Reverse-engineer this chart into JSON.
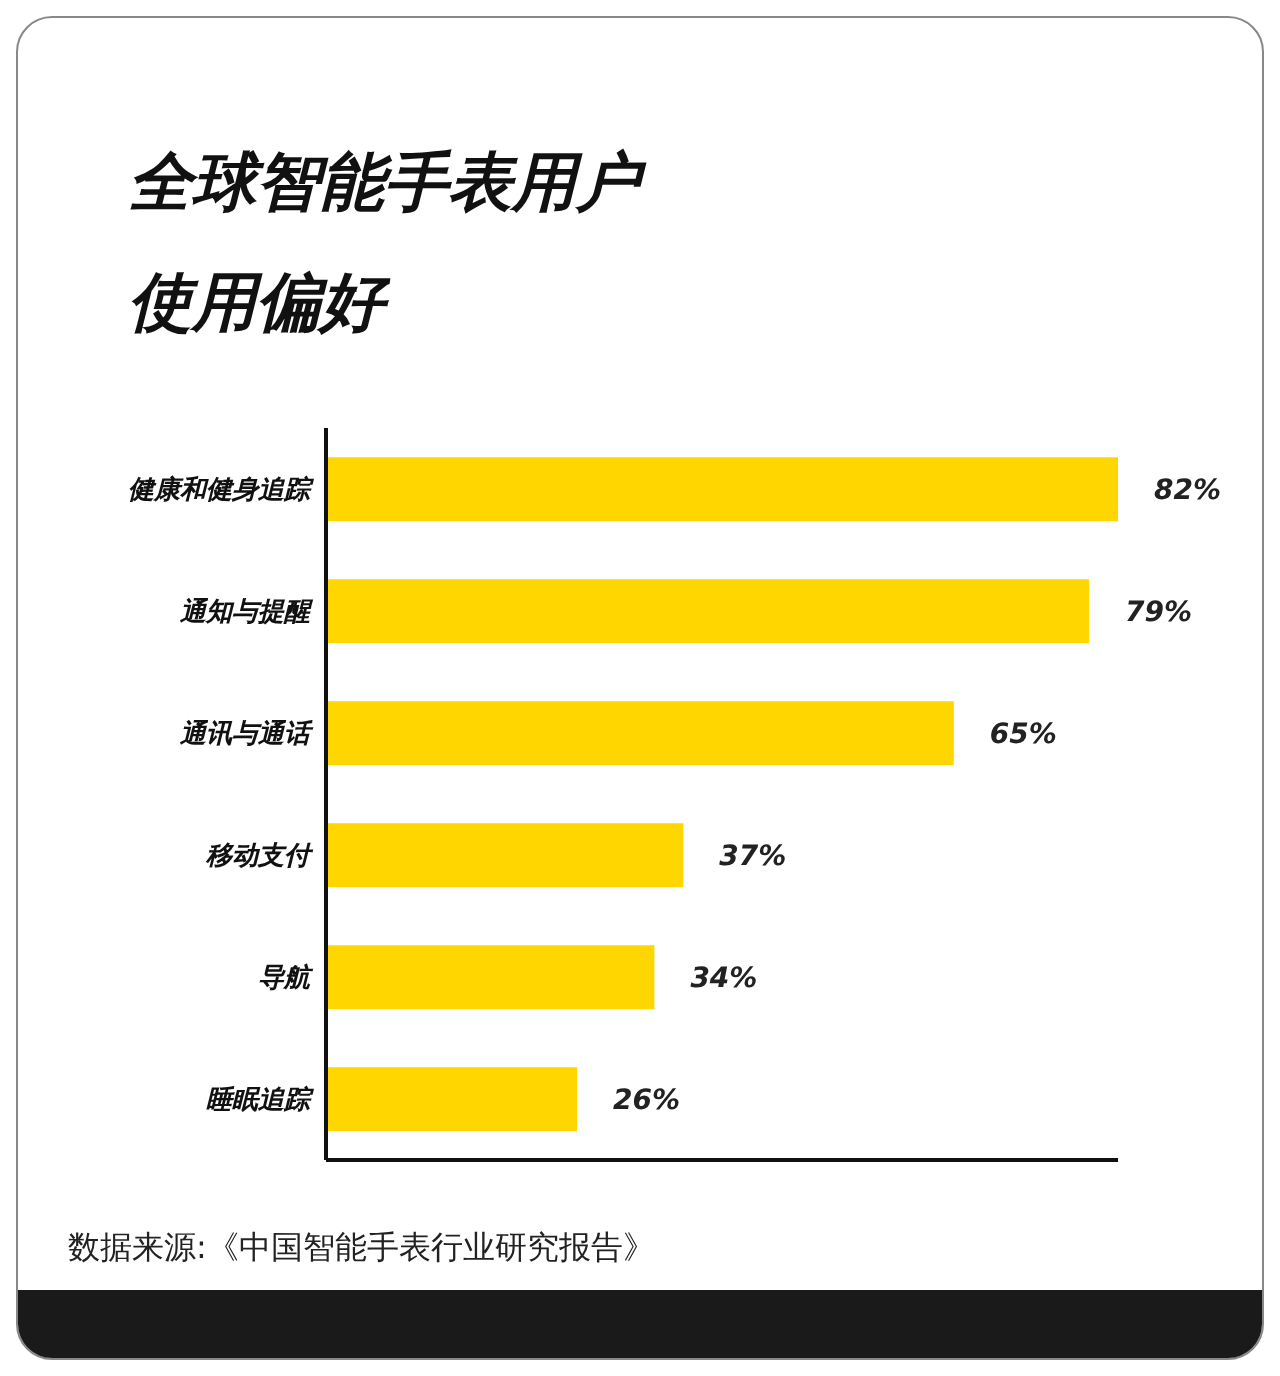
{
  "chart_data": {
    "type": "bar",
    "orientation": "horizontal",
    "title": "全球智能手表用户使用偏好",
    "categories": [
      "健康和健身追踪",
      "通知与提醒",
      "通讯与通话",
      "移动支付",
      "导航",
      "睡眠追踪"
    ],
    "values": [
      82,
      79,
      65,
      37,
      34,
      26
    ],
    "value_labels": [
      "82%",
      "79%",
      "65%",
      "37%",
      "34%",
      "26%"
    ],
    "color": "#ffd600",
    "annotations": [
      "数据来源:《中国智能手表行业研究报告》"
    ]
  }
}
